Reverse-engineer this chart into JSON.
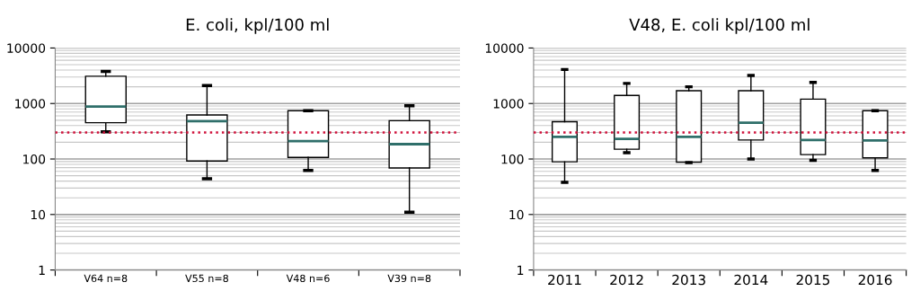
{
  "chart_data": [
    {
      "type": "box",
      "title": "E. coli, kpl/100 ml",
      "categories": [
        "V64 n=8",
        "V55 n=8",
        "V48 n=6",
        "V39 n=8"
      ],
      "boxes": [
        {
          "low": 310,
          "q1": 450,
          "median": 880,
          "q3": 3100,
          "high": 3800
        },
        {
          "low": 44,
          "q1": 92,
          "median": 480,
          "q3": 620,
          "high": 2100
        },
        {
          "low": 62,
          "q1": 107,
          "median": 210,
          "q3": 740,
          "high": 740
        },
        {
          "low": 11,
          "q1": 69,
          "median": 185,
          "q3": 490,
          "high": 910
        }
      ],
      "color": "#ffffff",
      "log": "y",
      "ylim": [
        1,
        10000
      ],
      "yticks": [
        1,
        10,
        100,
        1000,
        10000
      ],
      "grid": "y",
      "ref_lines": [
        {
          "axis": "y",
          "value": 300,
          "color": "#d0103a",
          "line_style": "dotted"
        }
      ]
    },
    {
      "type": "box",
      "title": "V48, E. coli kpl/100 ml",
      "categories": [
        "2011",
        "2012",
        "2013",
        "2014",
        "2015",
        "2016"
      ],
      "boxes": [
        {
          "low": 38,
          "q1": 89,
          "median": 250,
          "q3": 470,
          "high": 4100
        },
        {
          "low": 130,
          "q1": 150,
          "median": 230,
          "q3": 1400,
          "high": 2300
        },
        {
          "low": 86,
          "q1": 88,
          "median": 250,
          "q3": 1700,
          "high": 2000
        },
        {
          "low": 100,
          "q1": 220,
          "median": 450,
          "q3": 1700,
          "high": 3200
        },
        {
          "low": 95,
          "q1": 120,
          "median": 220,
          "q3": 1200,
          "high": 2400
        },
        {
          "low": 62,
          "q1": 105,
          "median": 215,
          "q3": 740,
          "high": 740
        }
      ],
      "color": "#ffffff",
      "log": "y",
      "ylim": [
        1,
        10000
      ],
      "yticks": [
        1,
        10,
        100,
        1000,
        10000
      ],
      "grid": "y",
      "ref_lines": [
        {
          "axis": "y",
          "value": 300,
          "color": "#d0103a",
          "line_style": "dotted"
        }
      ]
    }
  ]
}
